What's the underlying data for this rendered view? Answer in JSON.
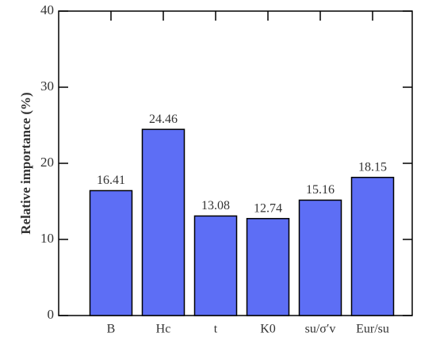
{
  "chart_data": {
    "type": "bar",
    "y_label": "Relative importance (%)",
    "categories": [
      "B",
      "Hc",
      "t",
      "K0",
      "su/σ′v",
      "Eur/su"
    ],
    "values": [
      16.41,
      24.46,
      13.08,
      12.74,
      15.16,
      18.15
    ],
    "color": "#5d6ef5",
    "ylim": [
      0,
      40
    ],
    "yticks": [
      0,
      10,
      20,
      30,
      40
    ],
    "grid": false
  }
}
